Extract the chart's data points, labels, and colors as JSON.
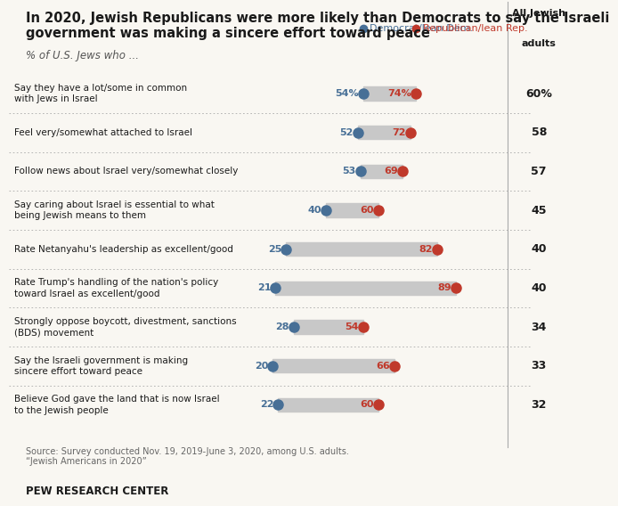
{
  "title_line1": "In 2020, Jewish Republicans were more likely than Democrats to say the Israeli",
  "title_line2": "government was making a sincere effort toward peace",
  "subtitle": "% of U.S. Jews who ...",
  "col_header_line1": "All Jewish",
  "col_header_line2": "adults",
  "dem_label": "Democrat/lean Dem.",
  "rep_label": "Republican/lean Rep.",
  "dem_color": "#476f96",
  "rep_color": "#c0392b",
  "bar_color": "#c8c8c8",
  "background_color": "#f9f7f2",
  "rows": [
    {
      "label": "Say they have a lot/some in common\nwith Jews in Israel",
      "dem": 54,
      "rep": 74,
      "all": "60%",
      "dem_pct": true
    },
    {
      "label": "Feel very/somewhat attached to Israel",
      "dem": 52,
      "rep": 72,
      "all": "58",
      "dem_pct": false
    },
    {
      "label": "Follow news about Israel very/somewhat closely",
      "dem": 53,
      "rep": 69,
      "all": "57",
      "dem_pct": false
    },
    {
      "label": "Say caring about Israel is essential to what\nbeing Jewish means to them",
      "dem": 40,
      "rep": 60,
      "all": "45",
      "dem_pct": false
    },
    {
      "label": "Rate Netanyahu's leadership as excellent/good",
      "dem": 25,
      "rep": 82,
      "all": "40",
      "dem_pct": false
    },
    {
      "label": "Rate Trump's handling of the nation's policy\ntoward Israel as excellent/good",
      "dem": 21,
      "rep": 89,
      "all": "40",
      "dem_pct": false
    },
    {
      "label": "Strongly oppose boycott, divestment, sanctions\n(BDS) movement",
      "dem": 28,
      "rep": 54,
      "all": "34",
      "dem_pct": false
    },
    {
      "label": "Say the Israeli government is making\nsincere effort toward peace",
      "dem": 20,
      "rep": 66,
      "all": "33",
      "dem_pct": false
    },
    {
      "label": "Believe God gave the land that is now Israel\nto the Jewish people",
      "dem": 22,
      "rep": 60,
      "all": "32",
      "dem_pct": false
    }
  ],
  "source_text": "Source: Survey conducted Nov. 19, 2019-June 3, 2020, among U.S. adults.\n“Jewish Americans in 2020”",
  "footer": "PEW RESEARCH CENTER"
}
